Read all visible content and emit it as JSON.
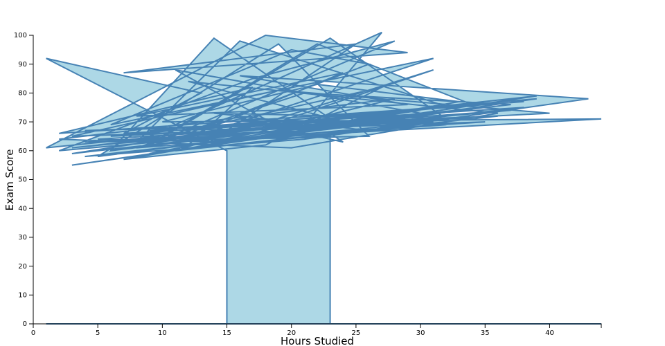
{
  "chart_data": {
    "type": "area",
    "title": "",
    "xlabel": "Hours Studied",
    "ylabel": "Exam Score",
    "xlim": [
      0,
      44
    ],
    "ylim": [
      0,
      100
    ],
    "xticks": [
      0,
      5,
      10,
      15,
      20,
      25,
      30,
      35,
      40
    ],
    "yticks": [
      0,
      10,
      20,
      30,
      40,
      50,
      60,
      70,
      80,
      90,
      100
    ],
    "grid": false,
    "colors": {
      "fill": "#add8e6",
      "stroke": "#4682b4",
      "axis": "#000000"
    },
    "points": [
      [
        15,
        60
      ],
      [
        1,
        92
      ],
      [
        13,
        80
      ],
      [
        7,
        66
      ],
      [
        22,
        70
      ],
      [
        3,
        61
      ],
      [
        28,
        72
      ],
      [
        10,
        64
      ],
      [
        35,
        75
      ],
      [
        5,
        58
      ],
      [
        19,
        97
      ],
      [
        26,
        65
      ],
      [
        4,
        63
      ],
      [
        31,
        70
      ],
      [
        12,
        62
      ],
      [
        17,
        82
      ],
      [
        2,
        66
      ],
      [
        38,
        77
      ],
      [
        9,
        67
      ],
      [
        24,
        68
      ],
      [
        14,
        99
      ],
      [
        6,
        60
      ],
      [
        30,
        73
      ],
      [
        11,
        88
      ],
      [
        20,
        66
      ],
      [
        3,
        55
      ],
      [
        33,
        74
      ],
      [
        16,
        98
      ],
      [
        8,
        63
      ],
      [
        27,
        101
      ],
      [
        21,
        69
      ],
      [
        4,
        67
      ],
      [
        36,
        72
      ],
      [
        13,
        61
      ],
      [
        25,
        97
      ],
      [
        7,
        87
      ],
      [
        29,
        94
      ],
      [
        18,
        100
      ],
      [
        1,
        61
      ],
      [
        34,
        76
      ],
      [
        22,
        97
      ],
      [
        10,
        65
      ],
      [
        39,
        79
      ],
      [
        15,
        63
      ],
      [
        5,
        64
      ],
      [
        32,
        71
      ],
      [
        23,
        99
      ],
      [
        9,
        62
      ],
      [
        28,
        98
      ],
      [
        17,
        85
      ],
      [
        2,
        60
      ],
      [
        37,
        74
      ],
      [
        12,
        66
      ],
      [
        26,
        90
      ],
      [
        20,
        95
      ],
      [
        6,
        69
      ],
      [
        31,
        92
      ],
      [
        14,
        67
      ],
      [
        40,
        73
      ],
      [
        19,
        81
      ],
      [
        3,
        65
      ],
      [
        35,
        70
      ],
      [
        11,
        63
      ],
      [
        24,
        87
      ],
      [
        8,
        72
      ],
      [
        29,
        76
      ],
      [
        16,
        86
      ],
      [
        43,
        78
      ],
      [
        21,
        64
      ],
      [
        4,
        58
      ],
      [
        38,
        75
      ],
      [
        13,
        68
      ],
      [
        27,
        82
      ],
      [
        18,
        62
      ],
      [
        7,
        57
      ],
      [
        33,
        77
      ],
      [
        22,
        83
      ],
      [
        10,
        70
      ],
      [
        44,
        71
      ],
      [
        15,
        64
      ],
      [
        30,
        74
      ],
      [
        5,
        62
      ],
      [
        25,
        69
      ],
      [
        12,
        84
      ],
      [
        36,
        73
      ],
      [
        20,
        61
      ],
      [
        2,
        64
      ],
      [
        28,
        78
      ],
      [
        17,
        66
      ],
      [
        9,
        59
      ],
      [
        39,
        78
      ],
      [
        23,
        72
      ],
      [
        6,
        65
      ],
      [
        34,
        71
      ],
      [
        14,
        73
      ],
      [
        26,
        67
      ],
      [
        11,
        60
      ],
      [
        31,
        88
      ],
      [
        19,
        70
      ],
      [
        3,
        59
      ],
      [
        37,
        76
      ],
      [
        21,
        80
      ],
      [
        8,
        61
      ],
      [
        32,
        69
      ],
      [
        16,
        71
      ],
      [
        24,
        63
      ],
      [
        23,
        66
      ]
    ]
  }
}
